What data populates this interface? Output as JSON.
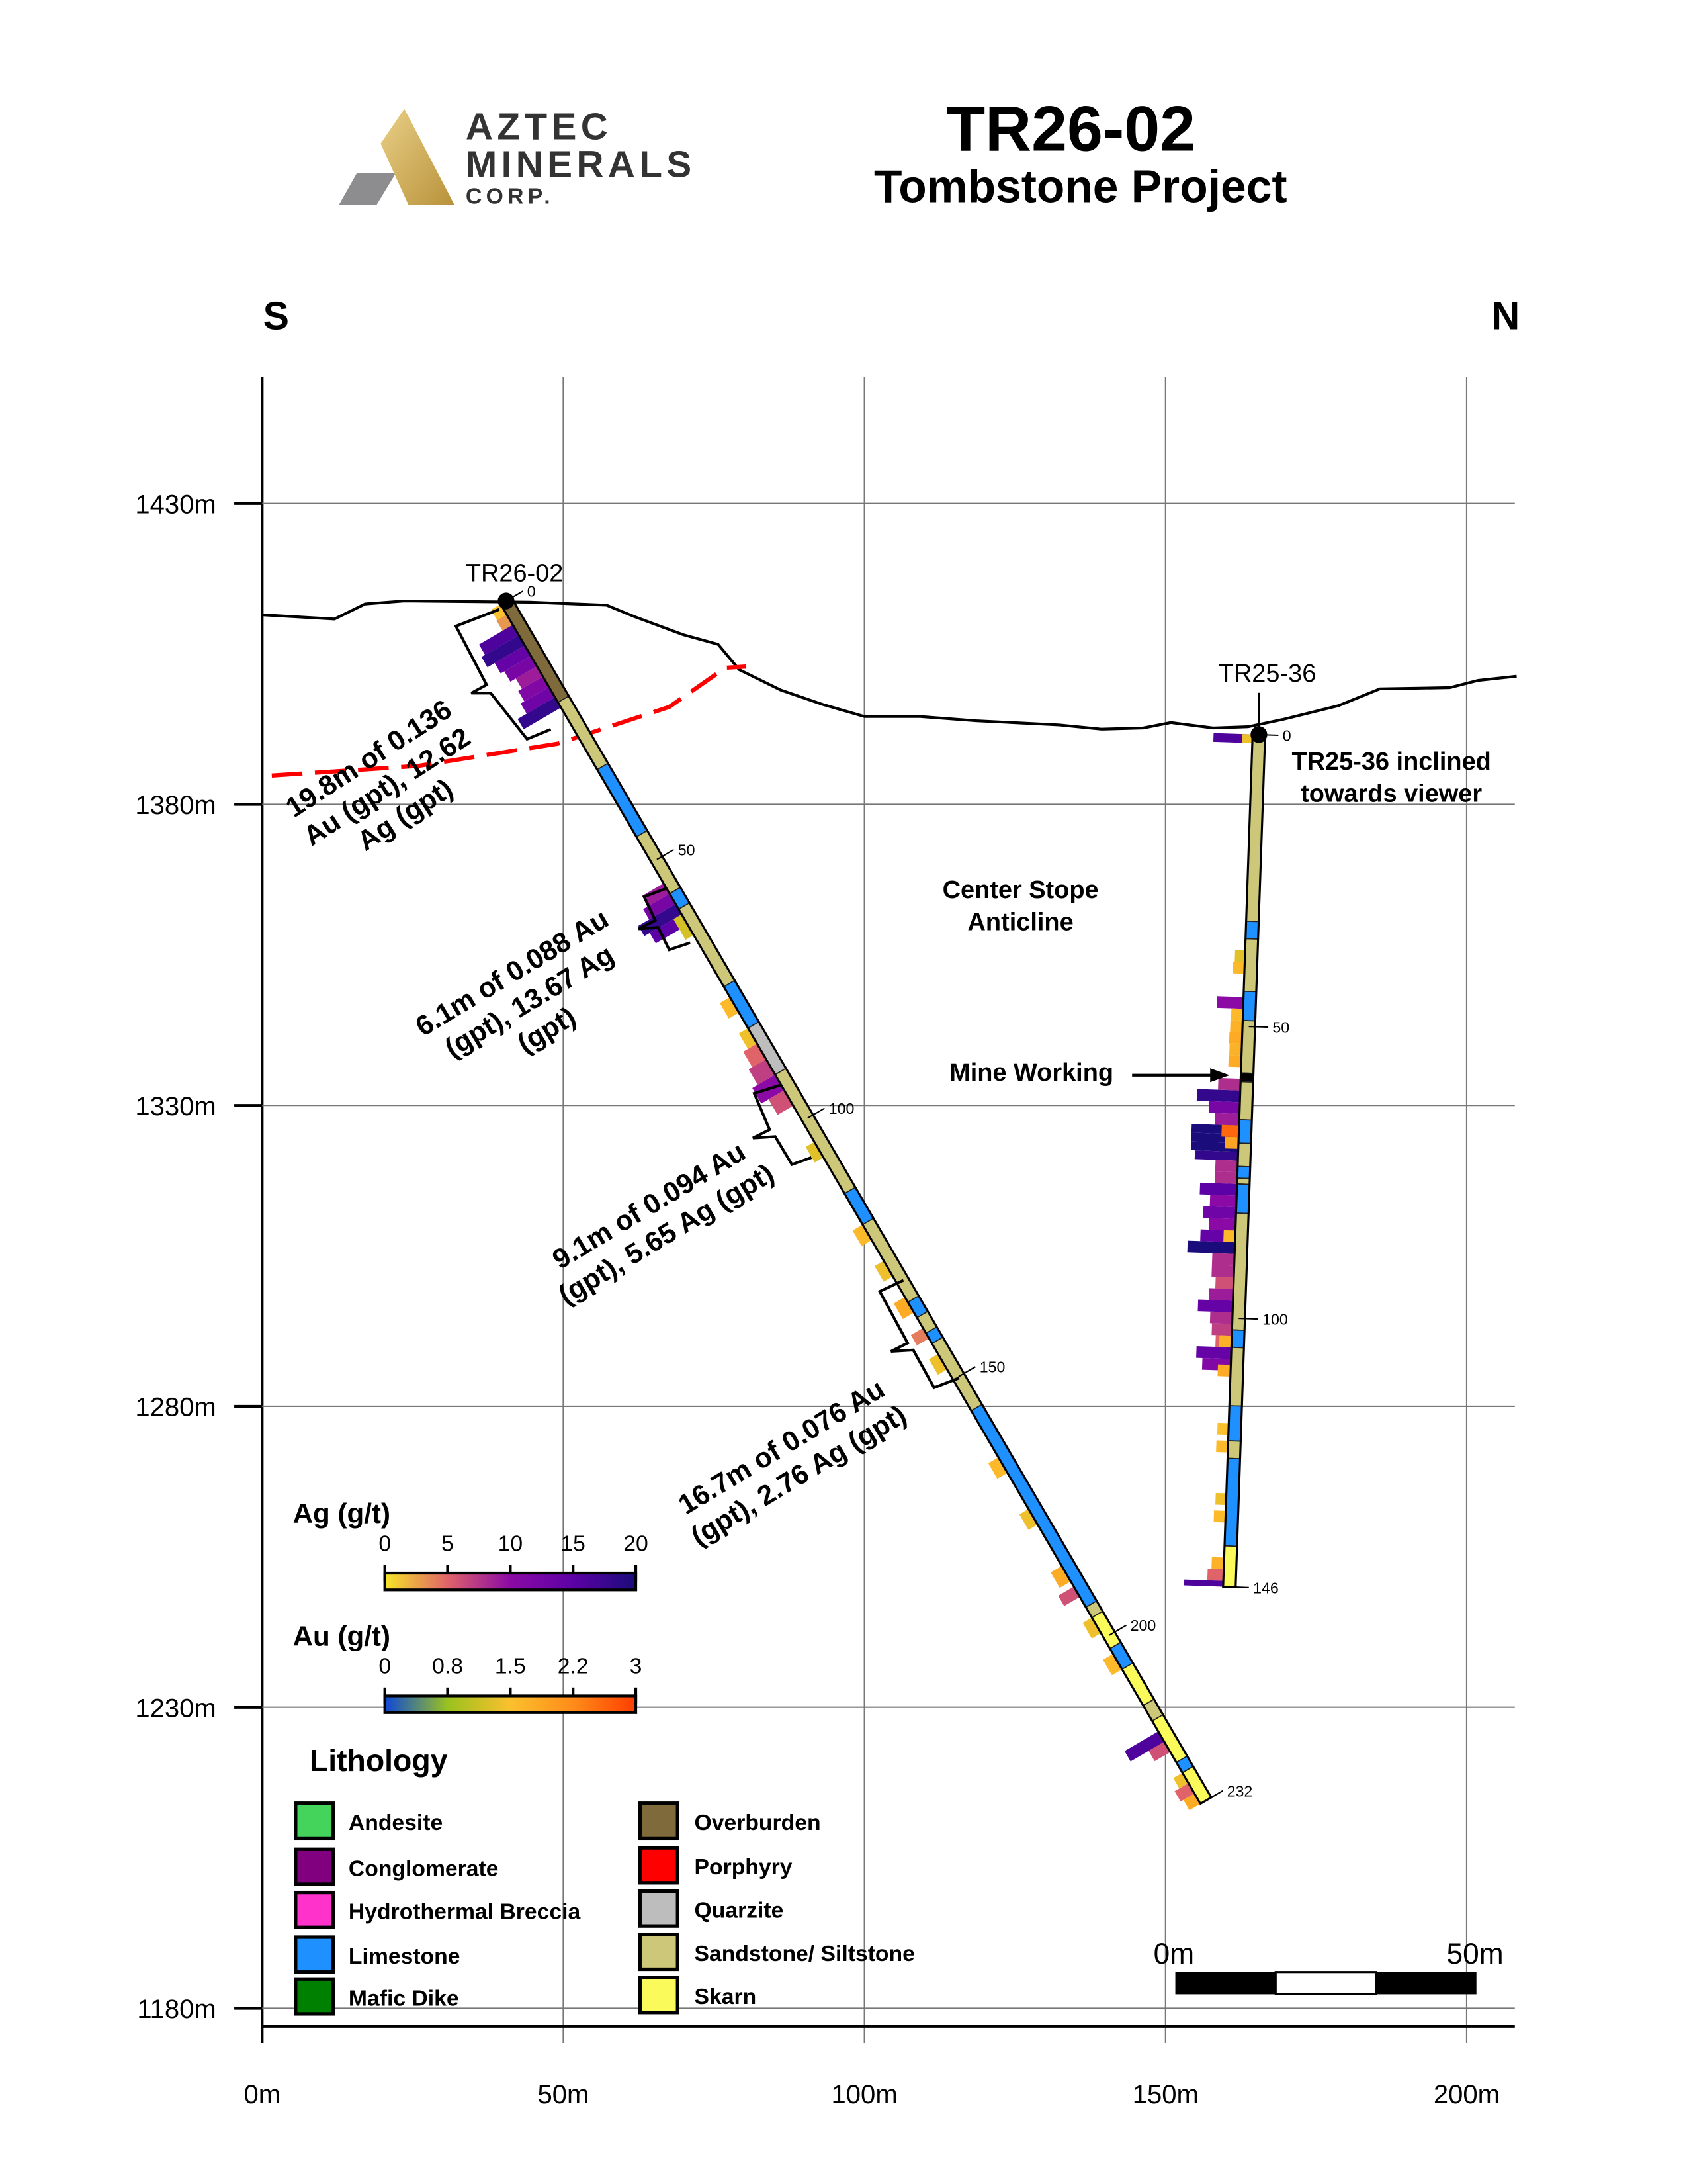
{
  "logo": {
    "line1": "AZTEC",
    "line2": "MINERALS",
    "line3": "CORP."
  },
  "header": {
    "title": "TR26-02",
    "subtitle": "Tombstone Project"
  },
  "compass": {
    "left": "S",
    "right": "N"
  },
  "axes": {
    "x_ticks": [
      0,
      50,
      100,
      150,
      200
    ],
    "x_labels": [
      "0m",
      "50m",
      "100m",
      "150m",
      "200m"
    ],
    "y_ticks": [
      1430,
      1380,
      1330,
      1280,
      1230,
      1180
    ],
    "y_labels": [
      "1430m",
      "1380m",
      "1330m",
      "1280m",
      "1230m",
      "1180m"
    ],
    "x_range_m": [
      0,
      208
    ],
    "y_range_m": [
      1177,
      1451
    ],
    "grid": true
  },
  "colors": {
    "Andesite": "#44d45c",
    "Conglomerate": "#800080",
    "Hydrothermal Breccia": "#ff33cc",
    "Limestone": "#1e90ff",
    "Mafic Dike": "#008000",
    "Overburden": "#7f6a3c",
    "Porphyry": "#ff0000",
    "Quarzite": "#bdbdbd",
    "Sandstone/ Siltstone": "#cdc77a",
    "Skarn": "#fafa5a",
    "Mine Working": "#000000",
    "contact": "#ff0000"
  },
  "topography": [
    [
      0,
      1411.5
    ],
    [
      12,
      1410.8
    ],
    [
      17.1,
      1413.3
    ],
    [
      23.6,
      1413.8
    ],
    [
      44.4,
      1413.6
    ],
    [
      57.2,
      1413.1
    ],
    [
      61.8,
      1411.2
    ],
    [
      69.9,
      1408.2
    ],
    [
      75.7,
      1406.6
    ],
    [
      79.2,
      1402.4
    ],
    [
      86.1,
      1399
    ],
    [
      93.1,
      1396.6
    ],
    [
      100,
      1394.6
    ],
    [
      109.3,
      1394.6
    ],
    [
      118.5,
      1393.9
    ],
    [
      132.4,
      1393.2
    ],
    [
      139.4,
      1392.5
    ],
    [
      146.3,
      1392.7
    ],
    [
      150.9,
      1393.6
    ],
    [
      157.9,
      1392.7
    ],
    [
      163.7,
      1392.9
    ],
    [
      169.4,
      1394.1
    ],
    [
      178.7,
      1396.4
    ],
    [
      185.6,
      1399.2
    ],
    [
      197.2,
      1399.4
    ],
    [
      201.9,
      1400.6
    ],
    [
      208.3,
      1401.3
    ]
  ],
  "contact_line": [
    [
      1.6,
      1384.8
    ],
    [
      25.9,
      1386.4
    ],
    [
      49.1,
      1390.1
    ],
    [
      67.6,
      1396.2
    ],
    [
      76.9,
      1402.7
    ],
    [
      80.3,
      1402.9
    ]
  ],
  "holes": [
    {
      "name": "TR26-02",
      "collar": [
        40.5,
        1413.8
      ],
      "end": [
        156.7,
        1214.5
      ],
      "length": 232,
      "depth_labels": [
        0,
        50,
        100,
        150,
        200,
        232
      ],
      "lithology": [
        [
          0,
          19,
          "Overburden"
        ],
        [
          19,
          32,
          "Sandstone/ Siltstone"
        ],
        [
          32,
          45,
          "Limestone"
        ],
        [
          45,
          56,
          "Sandstone/ Siltstone"
        ],
        [
          56,
          59,
          "Limestone"
        ],
        [
          59,
          74,
          "Sandstone/ Siltstone"
        ],
        [
          74,
          82,
          "Limestone"
        ],
        [
          82,
          91,
          "Quarzite"
        ],
        [
          91,
          114,
          "Sandstone/ Siltstone"
        ],
        [
          114,
          120,
          "Limestone"
        ],
        [
          120,
          135,
          "Sandstone/ Siltstone"
        ],
        [
          135,
          138,
          "Limestone"
        ],
        [
          138,
          141,
          "Sandstone/ Siltstone"
        ],
        [
          141,
          143,
          "Limestone"
        ],
        [
          143,
          156,
          "Sandstone/ Siltstone"
        ],
        [
          156,
          194,
          "Limestone"
        ],
        [
          194,
          196,
          "Sandstone/ Siltstone"
        ],
        [
          196,
          202,
          "Skarn"
        ],
        [
          202,
          206,
          "Limestone"
        ],
        [
          206,
          213,
          "Skarn"
        ],
        [
          213,
          216,
          "Sandstone/ Siltstone"
        ],
        [
          216,
          224,
          "Skarn"
        ],
        [
          224,
          226,
          "Limestone"
        ],
        [
          226,
          232,
          "Skarn"
        ]
      ],
      "ag": [
        [
          2,
          4,
          3
        ],
        [
          4,
          6,
          16
        ],
        [
          6,
          8,
          18
        ],
        [
          8,
          10,
          14
        ],
        [
          10,
          12,
          12
        ],
        [
          12,
          14,
          9
        ],
        [
          14,
          16,
          11
        ],
        [
          16,
          18,
          13
        ],
        [
          18,
          20,
          18
        ],
        [
          54,
          56,
          9
        ],
        [
          56,
          58,
          12
        ],
        [
          58,
          60,
          18
        ],
        [
          60,
          62,
          15
        ],
        [
          85,
          88,
          5
        ],
        [
          88,
          91,
          7
        ],
        [
          91,
          94,
          10
        ],
        [
          94,
          97,
          6
        ],
        [
          140,
          142,
          4
        ],
        [
          190,
          192,
          6
        ],
        [
          218,
          220,
          16
        ],
        [
          220,
          222,
          6
        ],
        [
          228,
          230,
          5
        ]
      ],
      "au": [
        [
          0,
          2,
          1.5
        ],
        [
          60,
          64,
          1.2
        ],
        [
          76,
          79,
          1.6
        ],
        [
          82,
          85,
          1.4
        ],
        [
          104,
          107,
          1.3
        ],
        [
          120,
          123,
          1.6
        ],
        [
          127,
          130,
          1.4
        ],
        [
          134,
          137,
          1.8
        ],
        [
          145,
          148,
          1.4
        ],
        [
          165,
          168,
          1.6
        ],
        [
          175,
          178,
          1.4
        ],
        [
          186,
          189,
          1.8
        ],
        [
          196,
          199,
          1.4
        ],
        [
          203,
          206,
          1.6
        ],
        [
          226,
          228,
          1.4
        ],
        [
          230,
          232,
          1.8
        ]
      ]
    },
    {
      "name": "TR25-36",
      "collar": [
        165.5,
        1391.6
      ],
      "end": [
        160.6,
        1250
      ],
      "length": 146,
      "depth_labels": [
        0,
        50,
        100,
        146
      ],
      "lithology": [
        [
          0,
          32,
          "Sandstone/ Siltstone"
        ],
        [
          32,
          35,
          "Limestone"
        ],
        [
          35,
          44,
          "Sandstone/ Siltstone"
        ],
        [
          44,
          49,
          "Limestone"
        ],
        [
          49,
          58,
          "Sandstone/ Siltstone"
        ],
        [
          58,
          59.5,
          "Mine Working"
        ],
        [
          59.5,
          66,
          "Sandstone/ Siltstone"
        ],
        [
          66,
          70,
          "Limestone"
        ],
        [
          70,
          74,
          "Sandstone/ Siltstone"
        ],
        [
          74,
          76,
          "Limestone"
        ],
        [
          76,
          77,
          "Sandstone/ Siltstone"
        ],
        [
          77,
          82,
          "Limestone"
        ],
        [
          82,
          102,
          "Sandstone/ Siltstone"
        ],
        [
          102,
          105,
          "Limestone"
        ],
        [
          105,
          115,
          "Sandstone/ Siltstone"
        ],
        [
          115,
          121,
          "Limestone"
        ],
        [
          121,
          124,
          "Sandstone/ Siltstone"
        ],
        [
          124,
          139,
          "Limestone"
        ],
        [
          139,
          146,
          "Skarn"
        ]
      ],
      "ag": [
        [
          0,
          1.5,
          16
        ],
        [
          45,
          47,
          10
        ],
        [
          59,
          61,
          8
        ],
        [
          61,
          63,
          18
        ],
        [
          63,
          65,
          12
        ],
        [
          65,
          67,
          9
        ],
        [
          67,
          68.5,
          20
        ],
        [
          68.5,
          70,
          20
        ],
        [
          70,
          71.5,
          20
        ],
        [
          71.5,
          73,
          18
        ],
        [
          73,
          75,
          8
        ],
        [
          75,
          77,
          8
        ],
        [
          77,
          79,
          15
        ],
        [
          79,
          81,
          10
        ],
        [
          81,
          83,
          13
        ],
        [
          83,
          85,
          10
        ],
        [
          85,
          87,
          14
        ],
        [
          87,
          89,
          20
        ],
        [
          89,
          91,
          8
        ],
        [
          91,
          93,
          8
        ],
        [
          93,
          95,
          6
        ],
        [
          95,
          97,
          9
        ],
        [
          97,
          99,
          14
        ],
        [
          99,
          101,
          8
        ],
        [
          101,
          103,
          7
        ],
        [
          103,
          105,
          5
        ],
        [
          105,
          107,
          14
        ],
        [
          107,
          109,
          11
        ],
        [
          143,
          145,
          5
        ],
        [
          145,
          146,
          16
        ]
      ],
      "au": [
        [
          0,
          1.5,
          1.4
        ],
        [
          37,
          39,
          1.3
        ],
        [
          39,
          41,
          1.6
        ],
        [
          47,
          49,
          1.6
        ],
        [
          49,
          51,
          1.7
        ],
        [
          51,
          53,
          1.8
        ],
        [
          53,
          55,
          1.7
        ],
        [
          55,
          57,
          1.8
        ],
        [
          67,
          69,
          2.6
        ],
        [
          69,
          71,
          1.9
        ],
        [
          85,
          87,
          1.6
        ],
        [
          103,
          105,
          1.7
        ],
        [
          108,
          110,
          1.8
        ],
        [
          118,
          120,
          1.5
        ],
        [
          121,
          123,
          1.6
        ],
        [
          130,
          132,
          1.4
        ],
        [
          133,
          135,
          1.6
        ],
        [
          141,
          143,
          1.7
        ]
      ]
    }
  ],
  "annotations": {
    "int1": [
      "19.8m of 0.136",
      "Au (gpt), 12.62",
      "Ag (gpt)"
    ],
    "int2": [
      "6.1m of 0.088 Au",
      "(gpt), 13.67 Ag",
      "(gpt)"
    ],
    "int3": [
      "9.1m of 0.094 Au",
      "(gpt), 5.65 Ag (gpt)"
    ],
    "int4": [
      "16.7m of 0.076 Au",
      "(gpt), 2.76 Ag (gpt)"
    ],
    "inclined": [
      "TR25-36 inclined",
      "towards viewer"
    ],
    "stope": [
      "Center Stope",
      "Anticline"
    ],
    "mine_working": "Mine Working"
  },
  "ag_scale": {
    "title": "Ag (g/t)",
    "ticks": [
      "0",
      "5",
      "10",
      "15",
      "20"
    ],
    "stops": [
      "#f5e626",
      "#e0636a",
      "#8b0aa5",
      "#5c01a6",
      "#1a0c7a"
    ],
    "max": 20
  },
  "au_scale": {
    "title": "Au (g/t)",
    "ticks": [
      "0",
      "0.8",
      "1.5",
      "2.2",
      "3"
    ],
    "stops": [
      "#0d47d9",
      "#9ac21f",
      "#fbc02d",
      "#ff8c1a",
      "#ff3d00"
    ],
    "max": 3
  },
  "lithology_legend": {
    "title": "Lithology",
    "left": [
      "Andesite",
      "Conglomerate",
      "Hydrothermal Breccia",
      "Limestone",
      "Mafic Dike"
    ],
    "right": [
      "Overburden",
      "Porphyry",
      "Quarzite",
      "Sandstone/ Siltstone",
      "Skarn"
    ]
  },
  "scale_bar": {
    "start": "0m",
    "end": "50m"
  }
}
